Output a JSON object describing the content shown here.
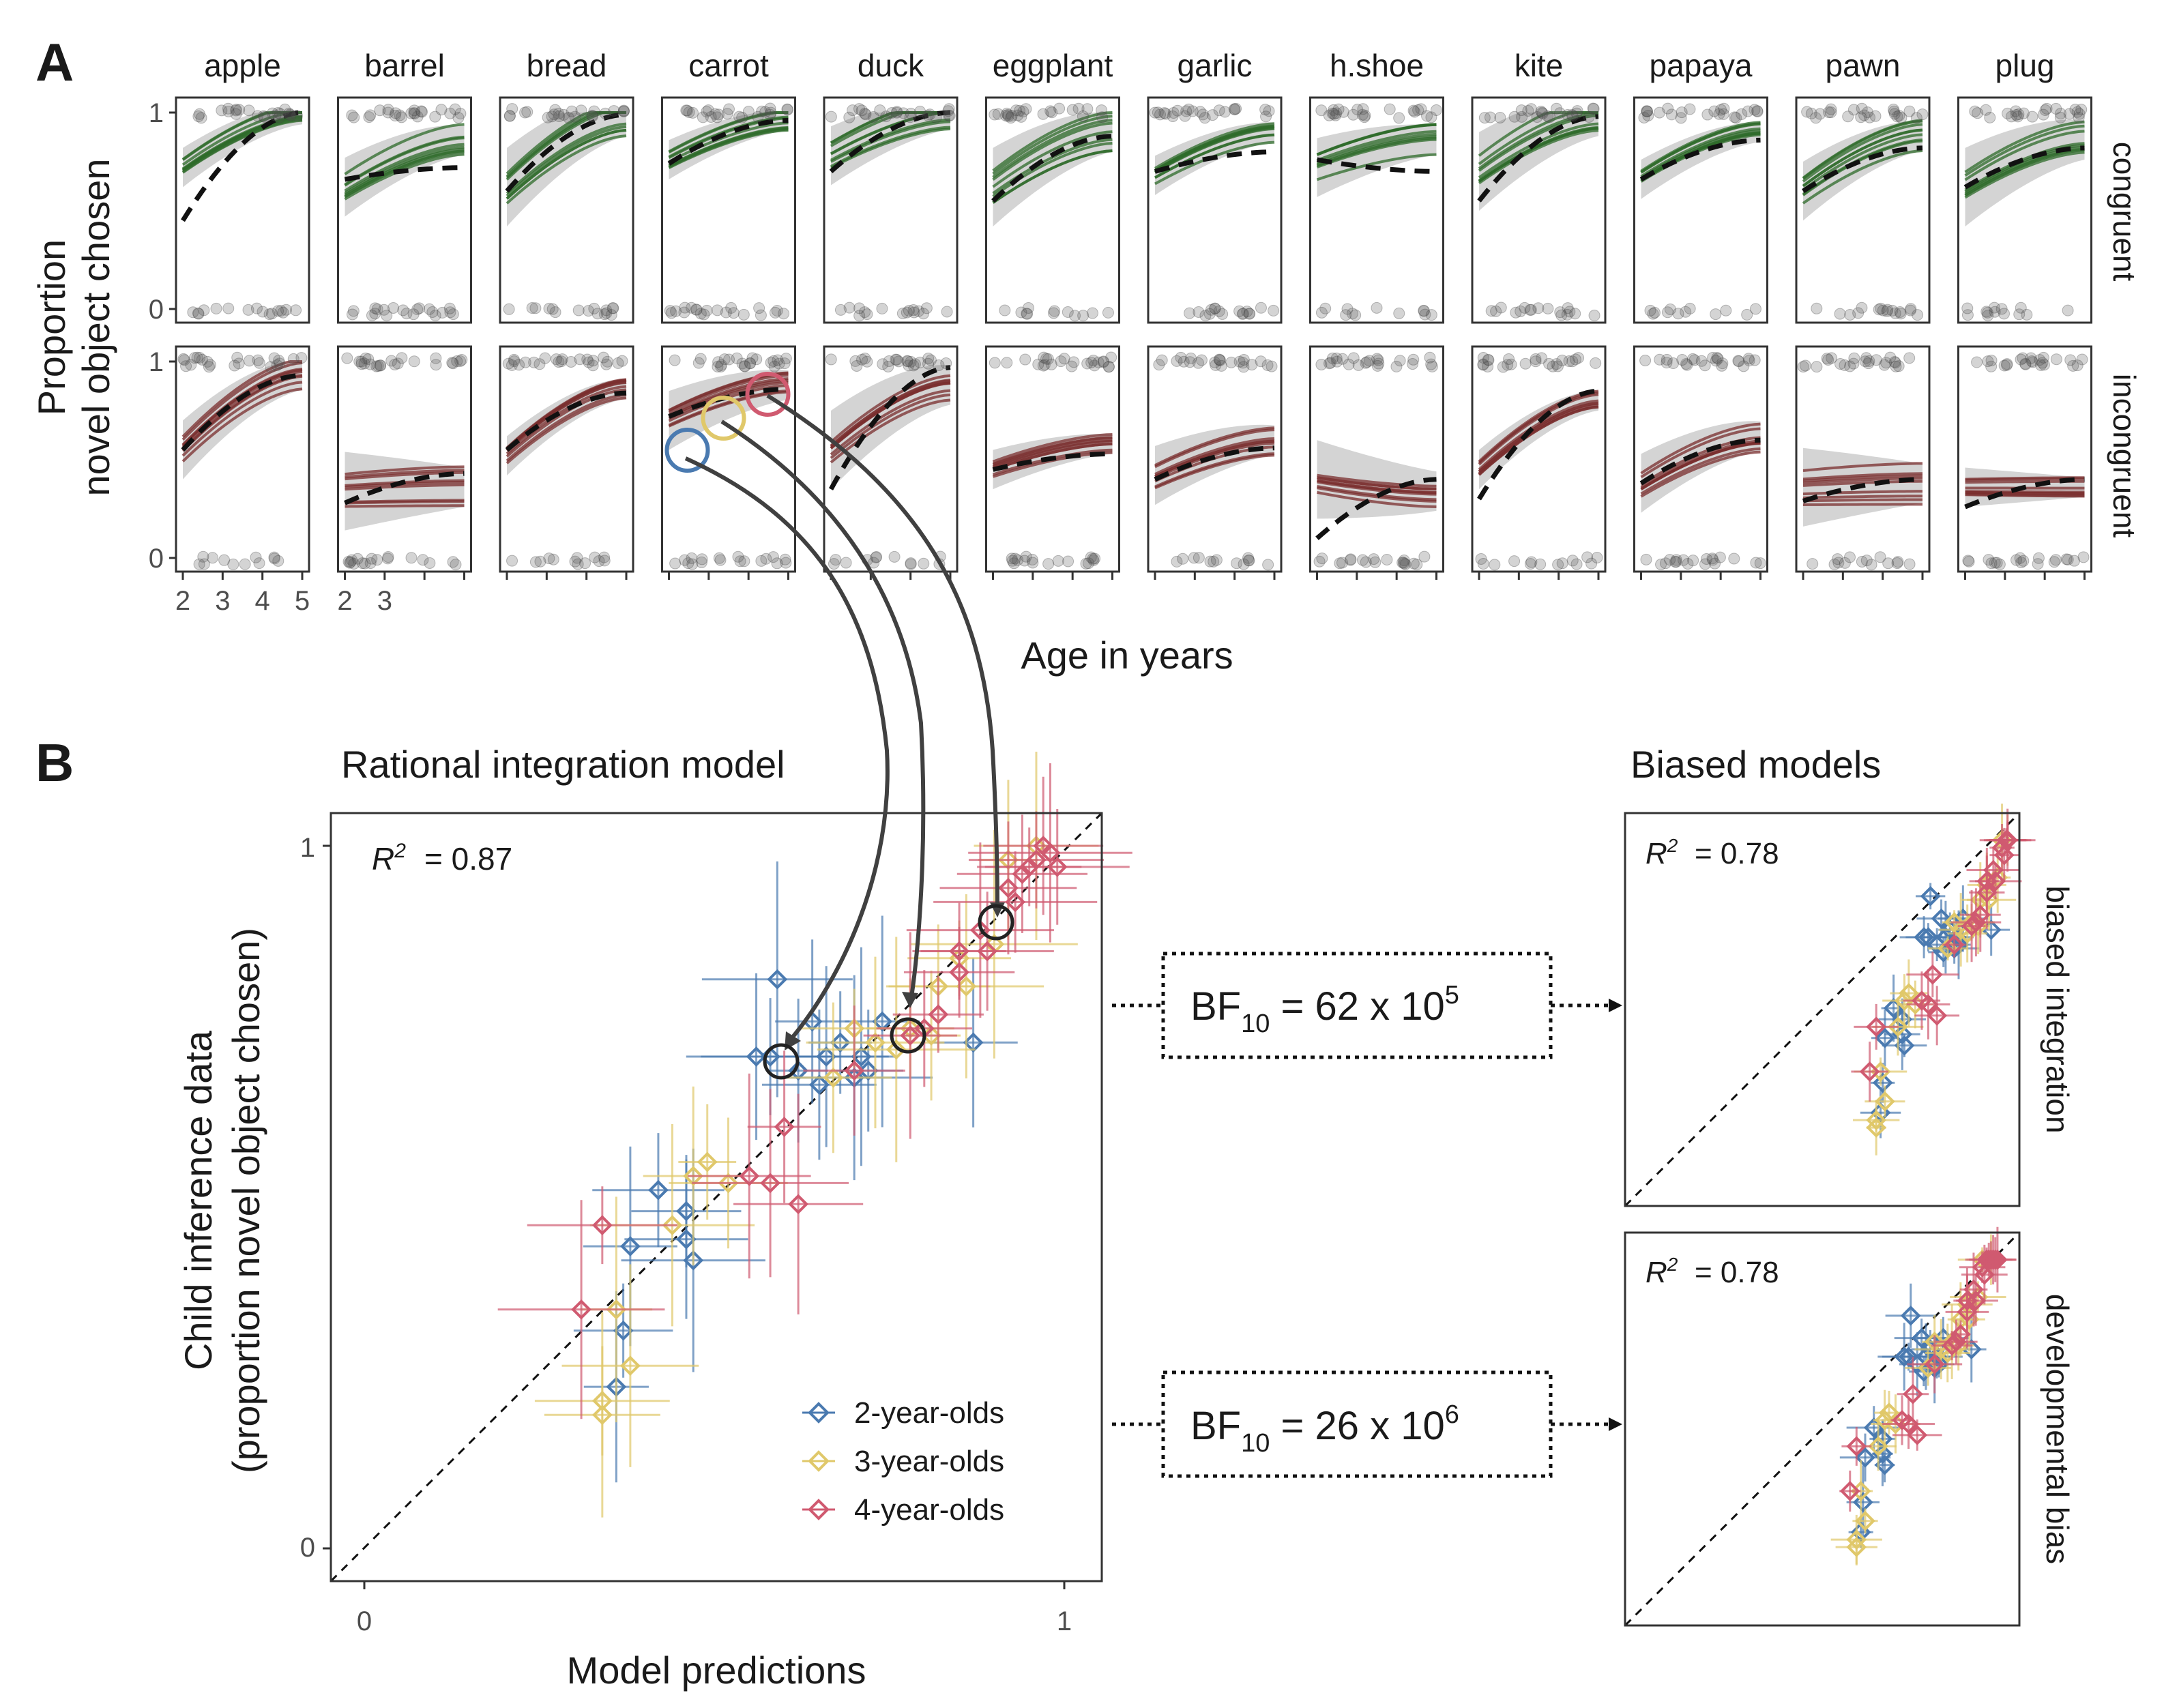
{
  "panel_a": {
    "letter": "A",
    "y_label_line1": "Proportion",
    "y_label_line2": "novel object chosen",
    "x_label": "Age in years",
    "row_labels": [
      "congruent",
      "incongruent"
    ],
    "y_tick_labels": [
      "0",
      "1"
    ],
    "x_tick_labels": [
      "2",
      "3",
      "4",
      "5"
    ],
    "x_tick_labels_second": [
      "2",
      "3"
    ],
    "colors": {
      "congruent": "#2e6b2a",
      "incongruent": "#7a2e2e",
      "ribbon": "#cccccc",
      "points": "#555555"
    }
  },
  "panel_b": {
    "letter": "B",
    "main_title": "Rational integration model",
    "side_title": "Biased models",
    "r2_main": "= 0.87",
    "r2_side": [
      "= 0.78",
      "= 0.78"
    ],
    "x_label": "Model predictions",
    "y_label_line1": "Child inference data",
    "y_label_line2": "(proportion novel object chosen)",
    "x_tick_labels": [
      "0",
      "1"
    ],
    "y_tick_labels": [
      "0",
      "1"
    ],
    "side_facets": [
      "biased integration",
      "developmental bias"
    ],
    "bf_boxes": [
      {
        "base": "BF",
        "sub": "10",
        "rest": " = 62 x 10",
        "sup": "5"
      },
      {
        "base": "BF",
        "sub": "10",
        "rest": " = 26 x 10",
        "sup": "6"
      }
    ],
    "legend": [
      "2-year-olds",
      "3-year-olds",
      "4-year-olds"
    ],
    "colors": {
      "2-year-olds": "#4a7ab0",
      "3-year-olds": "#e0c86a",
      "4-year-olds": "#d05a70"
    }
  },
  "chart_data": [
    {
      "type": "line",
      "panel": "A",
      "x_range": [
        2,
        5
      ],
      "ylim": [
        0,
        1
      ],
      "categories": [
        "apple",
        "barrel",
        "bread",
        "carrot",
        "duck",
        "eggplant",
        "garlic",
        "h.shoe",
        "kite",
        "papaya",
        "pawn",
        "plug"
      ],
      "rows": [
        "congruent",
        "incongruent"
      ],
      "series": [
        {
          "name": "congruent",
          "model": [
            [
              0.72,
              0.99
            ],
            [
              0.62,
              0.86
            ],
            [
              0.62,
              0.98
            ],
            [
              0.76,
              0.96
            ],
            [
              0.78,
              0.99
            ],
            [
              0.62,
              0.9
            ],
            [
              0.68,
              0.9
            ],
            [
              0.72,
              0.86
            ],
            [
              0.7,
              0.98
            ],
            [
              0.66,
              0.9
            ],
            [
              0.6,
              0.88
            ],
            [
              0.62,
              0.86
            ]
          ],
          "data": [
            [
              0.45,
              1.0
            ],
            [
              0.66,
              0.72
            ],
            [
              0.6,
              0.99
            ],
            [
              0.74,
              0.96
            ],
            [
              0.7,
              1.0
            ],
            [
              0.55,
              0.88
            ],
            [
              0.7,
              0.8
            ],
            [
              0.76,
              0.7
            ],
            [
              0.55,
              0.98
            ],
            [
              0.66,
              0.86
            ],
            [
              0.6,
              0.82
            ],
            [
              0.62,
              0.82
            ]
          ]
        },
        {
          "name": "incongruent",
          "model": [
            [
              0.55,
              0.93
            ],
            [
              0.34,
              0.36
            ],
            [
              0.52,
              0.86
            ],
            [
              0.7,
              0.88
            ],
            [
              0.55,
              0.88
            ],
            [
              0.45,
              0.58
            ],
            [
              0.42,
              0.6
            ],
            [
              0.4,
              0.34
            ],
            [
              0.45,
              0.8
            ],
            [
              0.38,
              0.62
            ],
            [
              0.36,
              0.38
            ],
            [
              0.36,
              0.36
            ]
          ],
          "data": [
            [
              0.55,
              0.93
            ],
            [
              0.28,
              0.43
            ],
            [
              0.55,
              0.84
            ],
            [
              0.72,
              0.86
            ],
            [
              0.35,
              0.97
            ],
            [
              0.45,
              0.53
            ],
            [
              0.4,
              0.56
            ],
            [
              0.1,
              0.4
            ],
            [
              0.3,
              0.85
            ],
            [
              0.38,
              0.6
            ],
            [
              0.29,
              0.4
            ],
            [
              0.26,
              0.4
            ]
          ]
        }
      ]
    },
    {
      "type": "scatter",
      "panel": "B",
      "title": "Rational integration model",
      "xlabel": "Model predictions",
      "ylabel": "Child inference data (proportion novel object chosen)",
      "xlim": [
        0,
        1
      ],
      "ylim": [
        0,
        1
      ],
      "r2": 0.87,
      "series": [
        {
          "name": "2-year-olds",
          "x": [
            0.59,
            0.64,
            0.66,
            0.68,
            0.7,
            0.72,
            0.74,
            0.87,
            0.58,
            0.46,
            0.42,
            0.47,
            0.38,
            0.37,
            0.46,
            0.36,
            0.56,
            0.65,
            0.62,
            0.71
          ],
          "y": [
            0.81,
            0.75,
            0.7,
            0.72,
            0.67,
            0.68,
            0.75,
            0.72,
            0.7,
            0.48,
            0.51,
            0.41,
            0.43,
            0.31,
            0.44,
            0.23,
            0.7,
            0.66,
            0.68,
            0.7
          ]
        },
        {
          "name": "3-year-olds",
          "x": [
            0.78,
            0.76,
            0.81,
            0.86,
            0.73,
            0.67,
            0.7,
            0.9,
            0.96,
            0.47,
            0.49,
            0.52,
            0.44,
            0.36,
            0.38,
            0.34,
            0.34,
            0.82,
            0.85,
            0.92
          ],
          "y": [
            0.74,
            0.71,
            0.73,
            0.8,
            0.72,
            0.67,
            0.74,
            0.86,
            1.0,
            0.53,
            0.55,
            0.52,
            0.46,
            0.34,
            0.26,
            0.19,
            0.21,
            0.8,
            0.84,
            0.98
          ]
        },
        {
          "name": "4-year-olds",
          "x": [
            0.92,
            0.94,
            0.95,
            0.96,
            0.97,
            0.98,
            0.99,
            0.89,
            0.85,
            0.82,
            0.8,
            0.78,
            0.55,
            0.58,
            0.34,
            0.31,
            0.62,
            0.85,
            0.88,
            0.93,
            0.6,
            0.7
          ],
          "y": [
            0.94,
            0.96,
            0.97,
            0.98,
            1.0,
            0.99,
            0.97,
            0.85,
            0.82,
            0.76,
            0.74,
            0.73,
            0.53,
            0.52,
            0.46,
            0.34,
            0.49,
            0.85,
            0.88,
            0.92,
            0.6,
            0.68
          ]
        }
      ]
    },
    {
      "type": "scatter",
      "panel": "B",
      "title": "Biased models",
      "facets": [
        "biased integration",
        "developmental bias"
      ],
      "xlim": [
        0,
        1
      ],
      "ylim": [
        0,
        1
      ],
      "r2": [
        0.78,
        0.78
      ]
    }
  ]
}
